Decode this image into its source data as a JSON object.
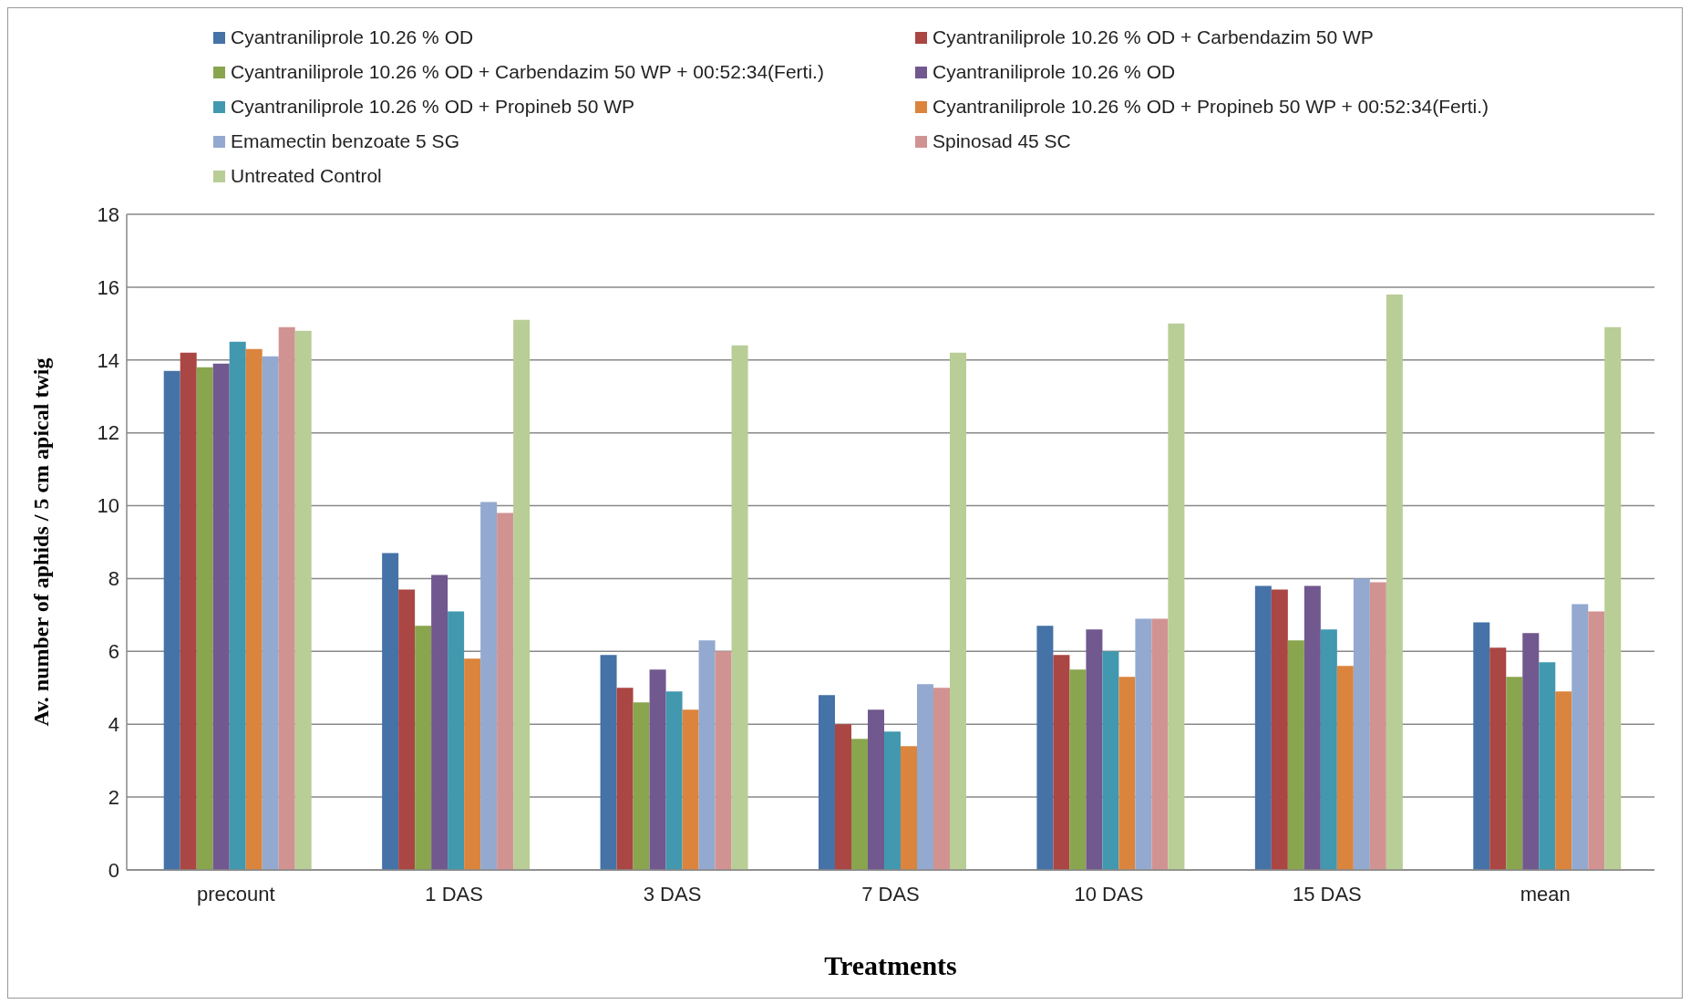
{
  "chart_data": {
    "type": "bar",
    "xlabel": "Treatments",
    "ylabel": "Av. number of  aphids  / 5 cm apical twig",
    "categories": [
      "precount",
      "1 DAS",
      "3 DAS",
      "7 DAS",
      "10 DAS",
      "15 DAS",
      "mean"
    ],
    "series": [
      {
        "name": "Cyantraniliprole 10.26 % OD",
        "color": "#4572a7",
        "values": [
          13.7,
          8.7,
          5.9,
          4.8,
          6.7,
          7.8,
          6.8
        ]
      },
      {
        "name": "Cyantraniliprole 10.26 % OD + Carbendazim 50 WP",
        "color": "#aa4643",
        "values": [
          14.2,
          7.7,
          5.0,
          4.0,
          5.9,
          7.7,
          6.1
        ]
      },
      {
        "name": "Cyantraniliprole 10.26 % OD + Carbendazim 50 WP + 00:52:34(Ferti.)",
        "color": "#89a54e",
        "values": [
          13.8,
          6.7,
          4.6,
          3.6,
          5.5,
          6.3,
          5.3
        ]
      },
      {
        "name": "Cyantraniliprole 10.26 % OD",
        "color": "#71588f",
        "values": [
          13.9,
          8.1,
          5.5,
          4.4,
          6.6,
          7.8,
          6.5
        ]
      },
      {
        "name": "Cyantraniliprole 10.26 % OD + Propineb 50 WP",
        "color": "#4198af",
        "values": [
          14.5,
          7.1,
          4.9,
          3.8,
          6.0,
          6.6,
          5.7
        ]
      },
      {
        "name": "Cyantraniliprole 10.26 % OD + Propineb 50 WP + 00:52:34(Ferti.)",
        "color": "#db843d",
        "values": [
          14.3,
          5.8,
          4.4,
          3.4,
          5.3,
          5.6,
          4.9
        ]
      },
      {
        "name": "Emamectin benzoate 5 SG",
        "color": "#93a9cf",
        "values": [
          14.1,
          10.1,
          6.3,
          5.1,
          6.9,
          8.0,
          7.3
        ]
      },
      {
        "name": "Spinosad 45 SC",
        "color": "#d19392",
        "values": [
          14.9,
          9.8,
          6.0,
          5.0,
          6.9,
          7.9,
          7.1
        ]
      },
      {
        "name": "Untreated Control",
        "color": "#b9cd96",
        "values": [
          14.8,
          15.1,
          14.4,
          14.2,
          15.0,
          15.8,
          14.9
        ]
      }
    ],
    "ylim": [
      0,
      18
    ],
    "yticks": [
      0,
      2,
      4,
      6,
      8,
      10,
      12,
      14,
      16,
      18
    ],
    "grid": "y",
    "legend": "top"
  }
}
